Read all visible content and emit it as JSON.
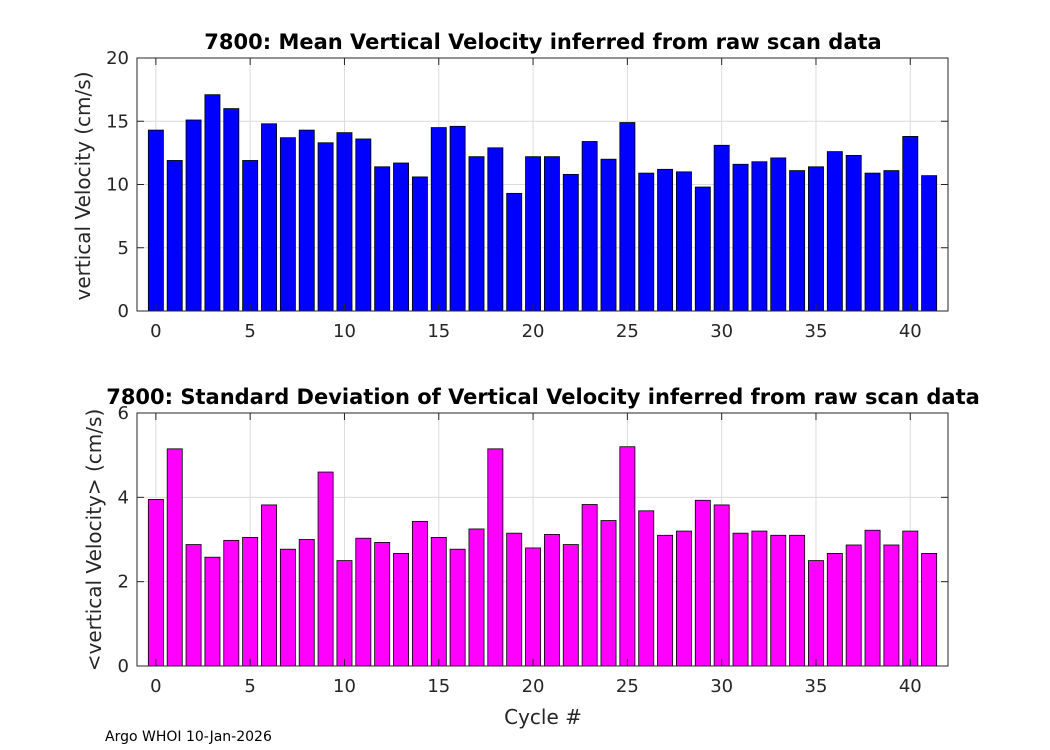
{
  "chart_data": [
    {
      "type": "bar",
      "title": "7800: Mean Vertical Velocity inferred from raw scan data",
      "xlabel": "",
      "ylabel": "vertical Velocity (cm/s)",
      "xlim": [
        -1,
        42
      ],
      "ylim": [
        0,
        20
      ],
      "xticks": [
        0,
        5,
        10,
        15,
        20,
        25,
        30,
        35,
        40
      ],
      "yticks": [
        0,
        5,
        10,
        15,
        20
      ],
      "grid": true,
      "color": "#0000ff",
      "x": [
        0,
        1,
        2,
        3,
        4,
        5,
        6,
        7,
        8,
        9,
        10,
        11,
        12,
        13,
        14,
        15,
        16,
        17,
        18,
        19,
        20,
        21,
        22,
        23,
        24,
        25,
        26,
        27,
        28,
        29,
        30,
        31,
        32,
        33,
        34,
        35,
        36,
        37,
        38,
        39,
        40,
        41
      ],
      "values": [
        14.3,
        11.9,
        15.1,
        17.1,
        16.0,
        11.9,
        14.8,
        13.7,
        14.3,
        13.3,
        14.1,
        13.6,
        11.4,
        11.7,
        10.6,
        14.5,
        14.6,
        12.2,
        12.9,
        9.3,
        12.2,
        12.2,
        10.8,
        13.4,
        12.0,
        14.9,
        10.9,
        11.2,
        11.0,
        9.8,
        13.1,
        11.6,
        11.8,
        12.1,
        11.1,
        11.4,
        12.6,
        12.3,
        10.9,
        11.1,
        13.8,
        10.7
      ]
    },
    {
      "type": "bar",
      "title": "7800: Standard Deviation of Vertical Velocity inferred from raw scan data",
      "xlabel": "Cycle #",
      "ylabel": "<vertical Velocity> (cm/s)",
      "xlim": [
        -1,
        42
      ],
      "ylim": [
        0,
        6
      ],
      "xticks": [
        0,
        5,
        10,
        15,
        20,
        25,
        30,
        35,
        40
      ],
      "yticks": [
        0,
        2,
        4,
        6
      ],
      "grid": true,
      "color": "#ff00ff",
      "x": [
        0,
        1,
        2,
        3,
        4,
        5,
        6,
        7,
        8,
        9,
        10,
        11,
        12,
        13,
        14,
        15,
        16,
        17,
        18,
        19,
        20,
        21,
        22,
        23,
        24,
        25,
        26,
        27,
        28,
        29,
        30,
        31,
        32,
        33,
        34,
        35,
        36,
        37,
        38,
        39,
        40,
        41
      ],
      "values": [
        3.95,
        5.15,
        2.88,
        2.58,
        2.98,
        3.05,
        3.82,
        2.77,
        3.0,
        4.6,
        2.5,
        3.03,
        2.93,
        2.67,
        3.43,
        3.05,
        2.77,
        3.25,
        5.15,
        3.15,
        2.8,
        3.12,
        2.88,
        3.83,
        3.45,
        5.2,
        3.68,
        3.1,
        3.2,
        3.93,
        3.82,
        3.15,
        3.2,
        3.1,
        3.1,
        2.5,
        2.67,
        2.87,
        3.22,
        2.87,
        3.2,
        2.67
      ]
    }
  ],
  "footer": "Argo WHOI 10-Jan-2026"
}
